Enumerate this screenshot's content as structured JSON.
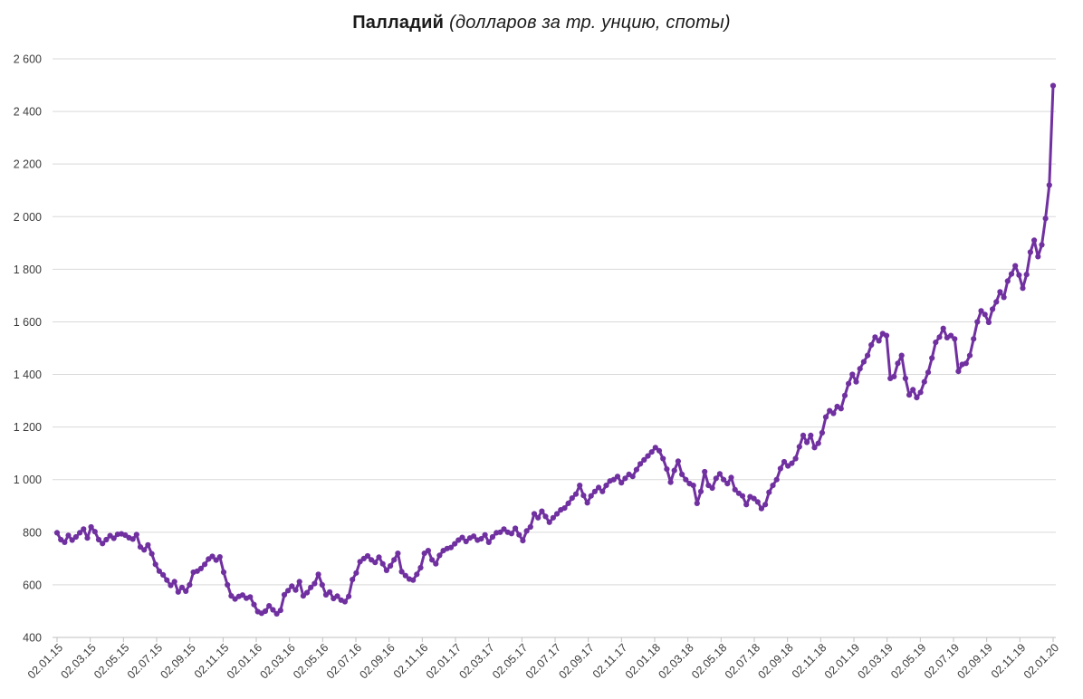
{
  "title": {
    "main": "Палладий",
    "note": "(долларов за тр. унцию, споты)"
  },
  "chart_data": {
    "type": "line",
    "title": "Палладий (долларов за тр. унцию, споты)",
    "xlabel": "",
    "ylabel": "",
    "ylim": [
      400,
      2600
    ],
    "y_step": 200,
    "y_tick_labels": [
      "400",
      "600",
      "800",
      "1 000",
      "1 200",
      "1 400",
      "1 600",
      "1 800",
      "2 000",
      "2 200",
      "2 400",
      "2 600"
    ],
    "x_tick_labels": [
      "02.01.15",
      "02.03.15",
      "02.05.15",
      "02.07.15",
      "02.09.15",
      "02.11.15",
      "02.01.16",
      "02.03.16",
      "02.05.16",
      "02.07.16",
      "02.09.16",
      "02.11.16",
      "02.01.17",
      "02.03.17",
      "02.05.17",
      "02.07.17",
      "02.09.17",
      "02.11.17",
      "02.01.18",
      "02.03.18",
      "02.05.18",
      "02.07.18",
      "02.09.18",
      "02.11.18",
      "02.01.19",
      "02.03.19",
      "02.05.19",
      "02.07.19",
      "02.09.19",
      "02.11.19",
      "02.01.20"
    ],
    "grid": "horizontal",
    "legend": "none",
    "marker": "circle",
    "line_color": "#7030a0",
    "gridline_color": "#d9d9d9",
    "axis_color": "#bfbfbf",
    "label_color": "#3b3b3b",
    "series": [
      {
        "name": "Палладий, споты",
        "frequency": "weekly",
        "first_date": "02.01.15",
        "last_date": "02.01.20",
        "values": [
          798,
          772,
          762,
          788,
          770,
          782,
          798,
          812,
          778,
          820,
          802,
          772,
          757,
          772,
          787,
          777,
          792,
          794,
          789,
          779,
          774,
          791,
          744,
          733,
          752,
          718,
          678,
          652,
          638,
          618,
          598,
          612,
          573,
          590,
          576,
          600,
          648,
          652,
          662,
          678,
          698,
          708,
          694,
          706,
          648,
          600,
          558,
          546,
          556,
          561,
          549,
          554,
          525,
          498,
          492,
          500,
          520,
          505,
          490,
          503,
          562,
          578,
          595,
          580,
          612,
          558,
          570,
          590,
          605,
          640,
          600,
          562,
          573,
          548,
          557,
          542,
          536,
          556,
          620,
          645,
          688,
          700,
          710,
          695,
          685,
          705,
          680,
          655,
          672,
          695,
          720,
          650,
          635,
          622,
          618,
          640,
          665,
          720,
          730,
          695,
          680,
          712,
          730,
          738,
          742,
          756,
          770,
          780,
          765,
          778,
          785,
          770,
          775,
          790,
          762,
          782,
          798,
          800,
          812,
          800,
          795,
          815,
          790,
          768,
          805,
          820,
          870,
          855,
          880,
          860,
          838,
          855,
          870,
          885,
          892,
          910,
          930,
          945,
          978,
          940,
          912,
          938,
          955,
          970,
          955,
          978,
          995,
          1000,
          1012,
          988,
          1005,
          1020,
          1012,
          1038,
          1060,
          1075,
          1090,
          1105,
          1122,
          1110,
          1080,
          1040,
          990,
          1035,
          1070,
          1020,
          1000,
          985,
          978,
          910,
          955,
          1030,
          978,
          968,
          1005,
          1022,
          1000,
          985,
          1008,
          962,
          948,
          938,
          905,
          935,
          928,
          915,
          890,
          905,
          952,
          978,
          1000,
          1042,
          1068,
          1052,
          1062,
          1080,
          1125,
          1168,
          1142,
          1168,
          1122,
          1138,
          1178,
          1238,
          1262,
          1252,
          1278,
          1270,
          1320,
          1365,
          1400,
          1372,
          1422,
          1448,
          1472,
          1512,
          1542,
          1528,
          1555,
          1548,
          1385,
          1392,
          1442,
          1472,
          1385,
          1322,
          1342,
          1312,
          1332,
          1372,
          1408,
          1462,
          1522,
          1542,
          1575,
          1540,
          1548,
          1535,
          1412,
          1438,
          1442,
          1472,
          1535,
          1600,
          1642,
          1628,
          1598,
          1648,
          1676,
          1714,
          1693,
          1755,
          1782,
          1813,
          1778,
          1728,
          1780,
          1865,
          1910,
          1848,
          1893,
          1993,
          2120,
          2498
        ]
      }
    ]
  }
}
